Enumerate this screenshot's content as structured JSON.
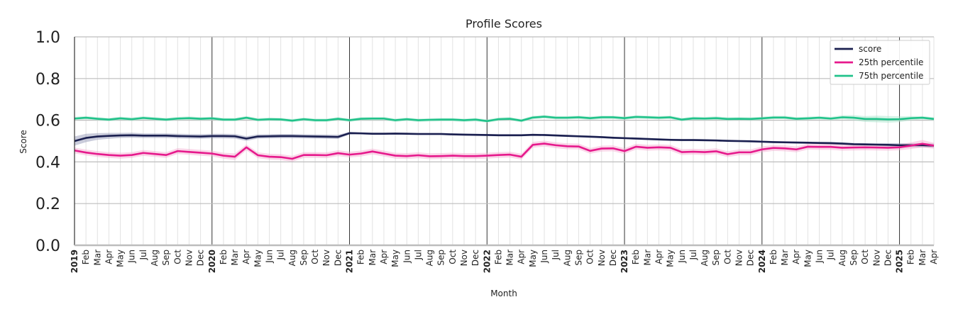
{
  "chart_data": {
    "type": "line",
    "title": "Profile Scores",
    "xlabel": "Month",
    "ylabel": "Score",
    "ylim": [
      0,
      1
    ],
    "yticks": [
      "0.0",
      "0.2",
      "0.4",
      "0.6",
      "0.8",
      "1.0"
    ],
    "grid": true,
    "legend_position": "top-right",
    "x": [
      "2019-01",
      "2019-02",
      "2019-03",
      "2019-04",
      "2019-05",
      "2019-06",
      "2019-07",
      "2019-08",
      "2019-09",
      "2019-10",
      "2019-11",
      "2019-12",
      "2020-01",
      "2020-02",
      "2020-03",
      "2020-04",
      "2020-05",
      "2020-06",
      "2020-07",
      "2020-08",
      "2020-09",
      "2020-10",
      "2020-11",
      "2020-12",
      "2021-01",
      "2021-02",
      "2021-03",
      "2021-04",
      "2021-05",
      "2021-06",
      "2021-07",
      "2021-08",
      "2021-09",
      "2021-10",
      "2021-11",
      "2021-12",
      "2022-01",
      "2022-02",
      "2022-03",
      "2022-04",
      "2022-05",
      "2022-06",
      "2022-07",
      "2022-08",
      "2022-09",
      "2022-10",
      "2022-11",
      "2022-12",
      "2023-01",
      "2023-02",
      "2023-03",
      "2023-04",
      "2023-05",
      "2023-06",
      "2023-07",
      "2023-08",
      "2023-09",
      "2023-10",
      "2023-11",
      "2023-12",
      "2024-01",
      "2024-02",
      "2024-03",
      "2024-04",
      "2024-05",
      "2024-06",
      "2024-07",
      "2024-08",
      "2024-09",
      "2024-10",
      "2024-11",
      "2024-12",
      "2025-01",
      "2025-02",
      "2025-03",
      "2025-04"
    ],
    "x_tick_labels": [
      "2019",
      "Feb",
      "Mar",
      "Apr",
      "May",
      "Jun",
      "Jul",
      "Aug",
      "Sep",
      "Oct",
      "Nov",
      "Dec",
      "2020",
      "Feb",
      "Mar",
      "Apr",
      "May",
      "Jun",
      "Jul",
      "Aug",
      "Sep",
      "Oct",
      "Nov",
      "Dec",
      "2021",
      "Feb",
      "Mar",
      "Apr",
      "May",
      "Jun",
      "Jul",
      "Aug",
      "Sep",
      "Oct",
      "Nov",
      "Dec",
      "2022",
      "Feb",
      "Mar",
      "Apr",
      "May",
      "Jun",
      "Jul",
      "Aug",
      "Sep",
      "Oct",
      "Nov",
      "Dec",
      "2023",
      "Feb",
      "Mar",
      "Apr",
      "May",
      "Jun",
      "Jul",
      "Aug",
      "Sep",
      "Oct",
      "Nov",
      "Dec",
      "2024",
      "Feb",
      "Mar",
      "Apr",
      "May",
      "Jun",
      "Jul",
      "Aug",
      "Sep",
      "Oct",
      "Nov",
      "Dec",
      "2025",
      "Feb",
      "Mar",
      "Apr"
    ],
    "series": [
      {
        "name": "score",
        "color": "#1a1f4f",
        "band_color": "#8a8db0",
        "values": [
          0.5,
          0.515,
          0.522,
          0.525,
          0.527,
          0.528,
          0.526,
          0.526,
          0.526,
          0.524,
          0.523,
          0.522,
          0.524,
          0.524,
          0.523,
          0.512,
          0.522,
          0.523,
          0.524,
          0.524,
          0.523,
          0.522,
          0.521,
          0.52,
          0.538,
          0.537,
          0.535,
          0.535,
          0.536,
          0.535,
          0.534,
          0.534,
          0.534,
          0.532,
          0.531,
          0.53,
          0.529,
          0.528,
          0.528,
          0.528,
          0.53,
          0.529,
          0.527,
          0.525,
          0.523,
          0.521,
          0.519,
          0.516,
          0.514,
          0.512,
          0.51,
          0.508,
          0.506,
          0.505,
          0.505,
          0.504,
          0.503,
          0.501,
          0.5,
          0.499,
          0.497,
          0.495,
          0.494,
          0.493,
          0.492,
          0.491,
          0.49,
          0.488,
          0.485,
          0.484,
          0.483,
          0.482,
          0.48,
          0.48,
          0.48,
          0.478
        ],
        "band_halfwidth": [
          0.022,
          0.02,
          0.016,
          0.014,
          0.012,
          0.012,
          0.011,
          0.011,
          0.011,
          0.011,
          0.011,
          0.011,
          0.011,
          0.011,
          0.011,
          0.011,
          0.01,
          0.01,
          0.01,
          0.01,
          0.01,
          0.01,
          0.01,
          0.01,
          0.006,
          0.005,
          0.005,
          0.005,
          0.005,
          0.005,
          0.005,
          0.005,
          0.005,
          0.005,
          0.005,
          0.005,
          0.005,
          0.005,
          0.005,
          0.005,
          0.005,
          0.005,
          0.005,
          0.005,
          0.005,
          0.005,
          0.005,
          0.005,
          0.005,
          0.005,
          0.005,
          0.005,
          0.005,
          0.005,
          0.005,
          0.005,
          0.005,
          0.005,
          0.005,
          0.005,
          0.005,
          0.005,
          0.005,
          0.005,
          0.005,
          0.005,
          0.006,
          0.006,
          0.006,
          0.006,
          0.006,
          0.008,
          0.01,
          0.01,
          0.01,
          0.01
        ]
      },
      {
        "name": "25th percentile",
        "color": "#e6198c",
        "band_color": "#f3a6cf",
        "values": [
          0.455,
          0.445,
          0.438,
          0.433,
          0.43,
          0.433,
          0.443,
          0.438,
          0.433,
          0.452,
          0.448,
          0.444,
          0.44,
          0.43,
          0.425,
          0.47,
          0.432,
          0.425,
          0.423,
          0.415,
          0.433,
          0.433,
          0.432,
          0.442,
          0.435,
          0.44,
          0.45,
          0.44,
          0.43,
          0.428,
          0.432,
          0.427,
          0.428,
          0.43,
          0.428,
          0.428,
          0.43,
          0.433,
          0.435,
          0.425,
          0.482,
          0.488,
          0.48,
          0.475,
          0.474,
          0.453,
          0.464,
          0.465,
          0.452,
          0.473,
          0.468,
          0.47,
          0.468,
          0.447,
          0.449,
          0.447,
          0.451,
          0.437,
          0.446,
          0.446,
          0.46,
          0.467,
          0.465,
          0.46,
          0.473,
          0.472,
          0.472,
          0.468,
          0.469,
          0.47,
          0.469,
          0.468,
          0.47,
          0.478,
          0.487,
          0.478
        ],
        "band_halfwidth": [
          0.014,
          0.014,
          0.014,
          0.014,
          0.014,
          0.014,
          0.014,
          0.014,
          0.014,
          0.014,
          0.014,
          0.014,
          0.014,
          0.014,
          0.016,
          0.014,
          0.014,
          0.014,
          0.014,
          0.014,
          0.014,
          0.014,
          0.014,
          0.014,
          0.014,
          0.014,
          0.014,
          0.014,
          0.014,
          0.014,
          0.014,
          0.014,
          0.014,
          0.014,
          0.014,
          0.014,
          0.014,
          0.014,
          0.014,
          0.014,
          0.014,
          0.014,
          0.014,
          0.014,
          0.014,
          0.014,
          0.014,
          0.014,
          0.014,
          0.014,
          0.014,
          0.014,
          0.014,
          0.014,
          0.014,
          0.014,
          0.014,
          0.014,
          0.014,
          0.014,
          0.014,
          0.014,
          0.014,
          0.014,
          0.014,
          0.014,
          0.014,
          0.014,
          0.014,
          0.014,
          0.014,
          0.014,
          0.014,
          0.016,
          0.018,
          0.014
        ]
      },
      {
        "name": "75th percentile",
        "color": "#20c28a",
        "band_color": "#9fe4c8",
        "values": [
          0.608,
          0.612,
          0.607,
          0.603,
          0.609,
          0.605,
          0.611,
          0.607,
          0.603,
          0.608,
          0.61,
          0.607,
          0.609,
          0.603,
          0.603,
          0.612,
          0.602,
          0.605,
          0.604,
          0.598,
          0.605,
          0.6,
          0.6,
          0.607,
          0.6,
          0.607,
          0.608,
          0.608,
          0.6,
          0.605,
          0.6,
          0.602,
          0.603,
          0.603,
          0.6,
          0.603,
          0.596,
          0.605,
          0.607,
          0.598,
          0.613,
          0.617,
          0.612,
          0.612,
          0.614,
          0.61,
          0.614,
          0.614,
          0.61,
          0.616,
          0.614,
          0.612,
          0.614,
          0.603,
          0.609,
          0.608,
          0.61,
          0.606,
          0.607,
          0.606,
          0.609,
          0.613,
          0.613,
          0.607,
          0.609,
          0.612,
          0.608,
          0.614,
          0.612,
          0.606,
          0.606,
          0.604,
          0.605,
          0.61,
          0.612,
          0.606
        ],
        "band_halfwidth": [
          0.008,
          0.008,
          0.008,
          0.008,
          0.008,
          0.008,
          0.008,
          0.008,
          0.008,
          0.008,
          0.008,
          0.008,
          0.008,
          0.008,
          0.008,
          0.008,
          0.008,
          0.008,
          0.008,
          0.008,
          0.008,
          0.008,
          0.008,
          0.008,
          0.008,
          0.008,
          0.008,
          0.008,
          0.008,
          0.008,
          0.008,
          0.008,
          0.008,
          0.008,
          0.008,
          0.008,
          0.008,
          0.008,
          0.008,
          0.008,
          0.008,
          0.008,
          0.008,
          0.008,
          0.008,
          0.008,
          0.008,
          0.008,
          0.008,
          0.008,
          0.008,
          0.008,
          0.008,
          0.008,
          0.008,
          0.008,
          0.008,
          0.008,
          0.008,
          0.008,
          0.008,
          0.008,
          0.008,
          0.008,
          0.008,
          0.008,
          0.008,
          0.01,
          0.012,
          0.014,
          0.016,
          0.016,
          0.014,
          0.01,
          0.008,
          0.008
        ]
      }
    ]
  }
}
